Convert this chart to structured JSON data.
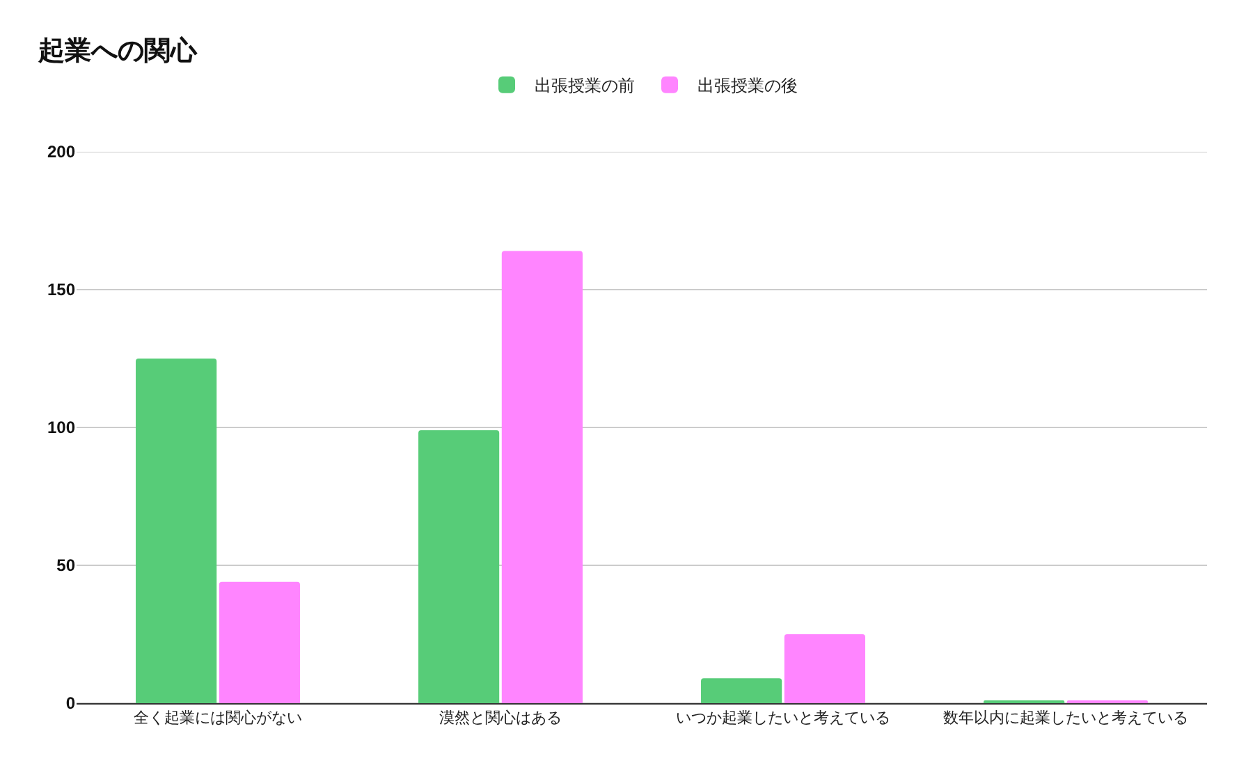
{
  "chart_data": {
    "type": "bar",
    "title": "起業への関心",
    "categories": [
      "全く起業には関心がない",
      "漠然と関心はある",
      "いつか起業したいと考えている",
      "数年以内に起業したいと考えている"
    ],
    "series": [
      {
        "name": "出張授業の前",
        "color": "#57cc78",
        "values": [
          125,
          99,
          9,
          1
        ]
      },
      {
        "name": "出張授業の後",
        "color": "#ff85ff",
        "values": [
          44,
          164,
          25,
          1
        ]
      }
    ],
    "ylim": [
      0,
      200
    ],
    "yticks": [
      0,
      50,
      100,
      150,
      200
    ],
    "grid": "y",
    "legend": "top"
  }
}
